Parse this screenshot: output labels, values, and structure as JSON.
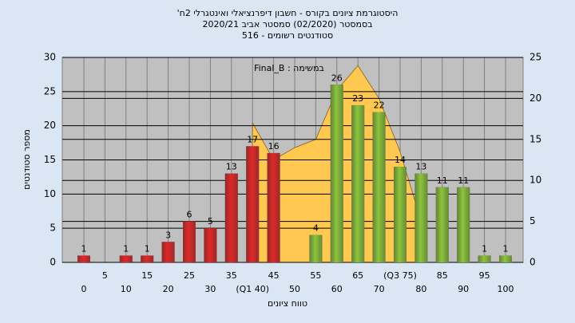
{
  "chart_data": {
    "type": "bar",
    "title": "'היסטוגרמת ציונים בקורס - חשבון דיפרנציאלי ואינטגרלי 2ח",
    "subtitle": "בסמסטר  (02/2020)  סמסטר אביב 2020/21",
    "subtitle2": "סטודנטים רשומים - 516",
    "annotation": "Final_B : במשימה",
    "y_label": "מספר סטודנטים",
    "x_label": "טווח ציונים",
    "categories": [
      "0",
      "5",
      "10",
      "15",
      "20",
      "25",
      "30",
      "35",
      "(Q1 40)",
      "45",
      "50",
      "55",
      "60",
      "65",
      "70",
      "(Q3 75)",
      "80",
      "85",
      "90",
      "95",
      "100"
    ],
    "values": [
      1,
      0,
      1,
      1,
      3,
      6,
      5,
      13,
      17,
      16,
      0,
      4,
      26,
      23,
      22,
      14,
      13,
      11,
      11,
      1,
      1
    ],
    "colors": [
      "#e02828",
      "#e02828",
      "#e02828",
      "#e02828",
      "#e02828",
      "#e02828",
      "#e02828",
      "#e02828",
      "#e02828",
      "#e02828",
      "#e02828",
      "#8cc43c",
      "#8cc43c",
      "#8cc43c",
      "#8cc43c",
      "#8cc43c",
      "#8cc43c",
      "#8cc43c",
      "#8cc43c",
      "#8cc43c",
      "#8cc43c"
    ],
    "area_values": [
      null,
      null,
      null,
      null,
      null,
      null,
      null,
      null,
      17,
      12.5,
      14,
      15,
      21,
      24,
      20,
      13.5,
      5,
      null,
      null,
      null,
      null
    ],
    "area_color": "#ffc850",
    "ylim": [
      0,
      30
    ],
    "yticks": [
      0,
      5,
      10,
      15,
      20,
      25,
      30
    ],
    "y2lim": [
      0,
      25
    ],
    "y2ticks": [
      0,
      5,
      10,
      15,
      20,
      25
    ],
    "grid": true
  }
}
